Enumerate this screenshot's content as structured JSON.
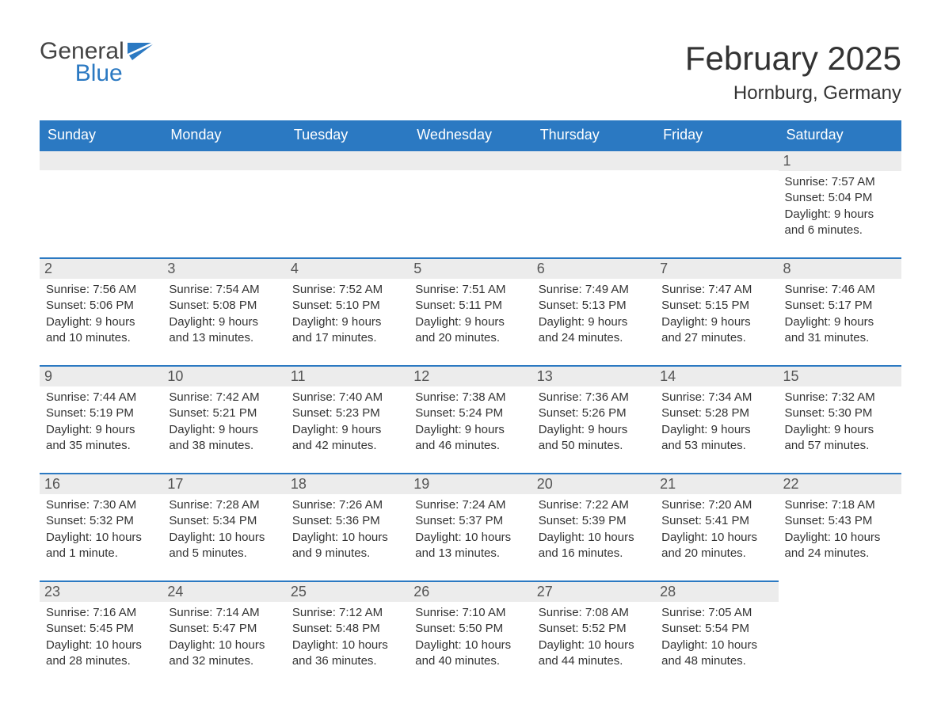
{
  "brand": {
    "line1": "General",
    "line2": "Blue"
  },
  "title": "February 2025",
  "location": "Hornburg, Germany",
  "colors": {
    "header_bg": "#2b79c2",
    "header_text": "#ffffff",
    "daynum_bg": "#ececec",
    "daynum_border": "#2b79c2",
    "page_bg": "#ffffff",
    "text": "#333333",
    "brand_gray": "#444444",
    "brand_blue": "#2b79c2"
  },
  "daysOfWeek": [
    "Sunday",
    "Monday",
    "Tuesday",
    "Wednesday",
    "Thursday",
    "Friday",
    "Saturday"
  ],
  "labels": {
    "sunrise": "Sunrise: ",
    "sunset": "Sunset: ",
    "daylight": "Daylight: "
  },
  "weeks": [
    [
      null,
      null,
      null,
      null,
      null,
      null,
      {
        "n": "1",
        "sunrise": "7:57 AM",
        "sunset": "5:04 PM",
        "daylight": "9 hours and 6 minutes."
      }
    ],
    [
      {
        "n": "2",
        "sunrise": "7:56 AM",
        "sunset": "5:06 PM",
        "daylight": "9 hours and 10 minutes."
      },
      {
        "n": "3",
        "sunrise": "7:54 AM",
        "sunset": "5:08 PM",
        "daylight": "9 hours and 13 minutes."
      },
      {
        "n": "4",
        "sunrise": "7:52 AM",
        "sunset": "5:10 PM",
        "daylight": "9 hours and 17 minutes."
      },
      {
        "n": "5",
        "sunrise": "7:51 AM",
        "sunset": "5:11 PM",
        "daylight": "9 hours and 20 minutes."
      },
      {
        "n": "6",
        "sunrise": "7:49 AM",
        "sunset": "5:13 PM",
        "daylight": "9 hours and 24 minutes."
      },
      {
        "n": "7",
        "sunrise": "7:47 AM",
        "sunset": "5:15 PM",
        "daylight": "9 hours and 27 minutes."
      },
      {
        "n": "8",
        "sunrise": "7:46 AM",
        "sunset": "5:17 PM",
        "daylight": "9 hours and 31 minutes."
      }
    ],
    [
      {
        "n": "9",
        "sunrise": "7:44 AM",
        "sunset": "5:19 PM",
        "daylight": "9 hours and 35 minutes."
      },
      {
        "n": "10",
        "sunrise": "7:42 AM",
        "sunset": "5:21 PM",
        "daylight": "9 hours and 38 minutes."
      },
      {
        "n": "11",
        "sunrise": "7:40 AM",
        "sunset": "5:23 PM",
        "daylight": "9 hours and 42 minutes."
      },
      {
        "n": "12",
        "sunrise": "7:38 AM",
        "sunset": "5:24 PM",
        "daylight": "9 hours and 46 minutes."
      },
      {
        "n": "13",
        "sunrise": "7:36 AM",
        "sunset": "5:26 PM",
        "daylight": "9 hours and 50 minutes."
      },
      {
        "n": "14",
        "sunrise": "7:34 AM",
        "sunset": "5:28 PM",
        "daylight": "9 hours and 53 minutes."
      },
      {
        "n": "15",
        "sunrise": "7:32 AM",
        "sunset": "5:30 PM",
        "daylight": "9 hours and 57 minutes."
      }
    ],
    [
      {
        "n": "16",
        "sunrise": "7:30 AM",
        "sunset": "5:32 PM",
        "daylight": "10 hours and 1 minute."
      },
      {
        "n": "17",
        "sunrise": "7:28 AM",
        "sunset": "5:34 PM",
        "daylight": "10 hours and 5 minutes."
      },
      {
        "n": "18",
        "sunrise": "7:26 AM",
        "sunset": "5:36 PM",
        "daylight": "10 hours and 9 minutes."
      },
      {
        "n": "19",
        "sunrise": "7:24 AM",
        "sunset": "5:37 PM",
        "daylight": "10 hours and 13 minutes."
      },
      {
        "n": "20",
        "sunrise": "7:22 AM",
        "sunset": "5:39 PM",
        "daylight": "10 hours and 16 minutes."
      },
      {
        "n": "21",
        "sunrise": "7:20 AM",
        "sunset": "5:41 PM",
        "daylight": "10 hours and 20 minutes."
      },
      {
        "n": "22",
        "sunrise": "7:18 AM",
        "sunset": "5:43 PM",
        "daylight": "10 hours and 24 minutes."
      }
    ],
    [
      {
        "n": "23",
        "sunrise": "7:16 AM",
        "sunset": "5:45 PM",
        "daylight": "10 hours and 28 minutes."
      },
      {
        "n": "24",
        "sunrise": "7:14 AM",
        "sunset": "5:47 PM",
        "daylight": "10 hours and 32 minutes."
      },
      {
        "n": "25",
        "sunrise": "7:12 AM",
        "sunset": "5:48 PM",
        "daylight": "10 hours and 36 minutes."
      },
      {
        "n": "26",
        "sunrise": "7:10 AM",
        "sunset": "5:50 PM",
        "daylight": "10 hours and 40 minutes."
      },
      {
        "n": "27",
        "sunrise": "7:08 AM",
        "sunset": "5:52 PM",
        "daylight": "10 hours and 44 minutes."
      },
      {
        "n": "28",
        "sunrise": "7:05 AM",
        "sunset": "5:54 PM",
        "daylight": "10 hours and 48 minutes."
      },
      null
    ]
  ]
}
